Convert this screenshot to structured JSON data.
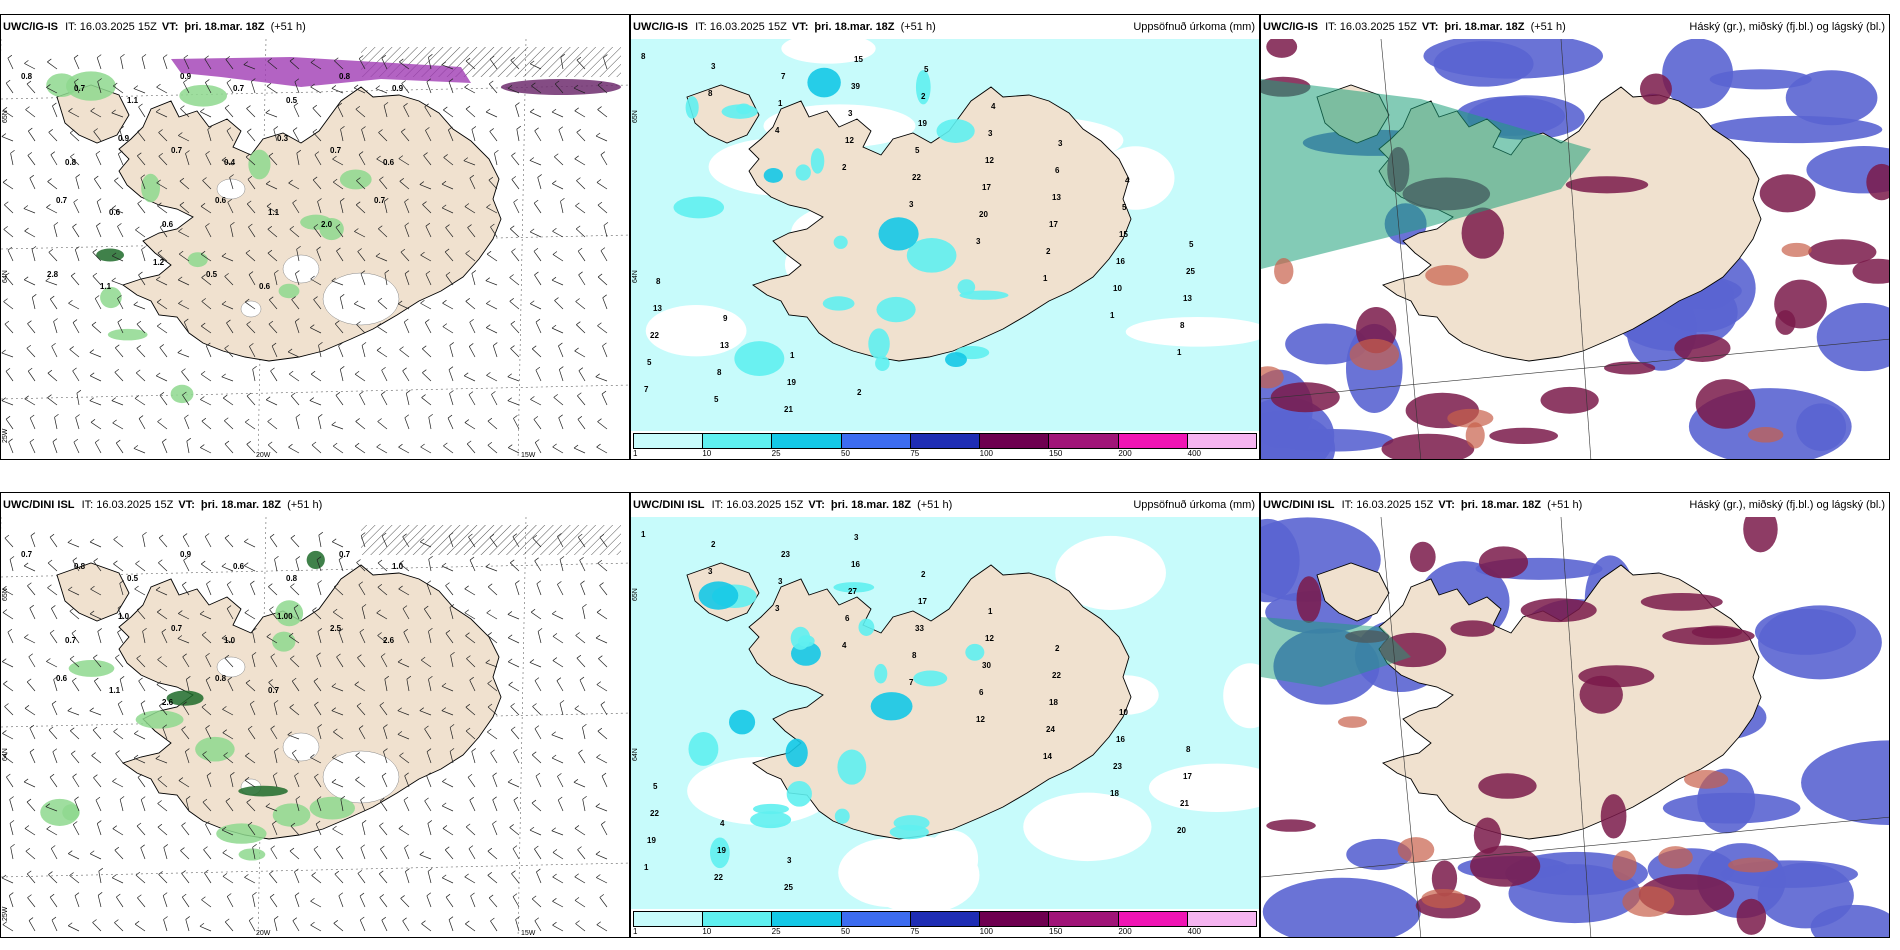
{
  "panels": [
    {
      "id": "p1",
      "title": "UWC/IG-IS",
      "it": "IT: 16.03.2025 15Z",
      "vt_label": "VT:",
      "vt_value": "þri. 18.mar. 18Z",
      "lead": "(+51 h)",
      "right_title": "",
      "type": "wind"
    },
    {
      "id": "p2",
      "title": "UWC/IG-IS",
      "it": "IT: 16.03.2025 15Z",
      "vt_label": "VT:",
      "vt_value": "þri. 18.mar. 18Z",
      "lead": "(+51 h)",
      "right_title": "Uppsöfnuð úrkoma (mm)",
      "type": "precip"
    },
    {
      "id": "p3",
      "title": "UWC/IG-IS",
      "it": "IT: 16.03.2025 15Z",
      "vt_label": "VT:",
      "vt_value": "þri. 18.mar. 18Z",
      "lead": "(+51 h)",
      "right_title": "Háský (gr.), miðský (fj.bl.) og lágský (bl.)",
      "type": "cloud"
    },
    {
      "id": "p4",
      "title": "UWC/DINI ISL",
      "it": "IT: 16.03.2025 15Z",
      "vt_label": "VT:",
      "vt_value": "þri. 18.mar. 18Z",
      "lead": "(+51 h)",
      "right_title": "",
      "type": "wind"
    },
    {
      "id": "p5",
      "title": "UWC/DINI ISL",
      "it": "IT: 16.03.2025 15Z",
      "vt_label": "VT:",
      "vt_value": "þri. 18.mar. 18Z",
      "lead": "(+51 h)",
      "right_title": "Uppsöfnuð úrkoma (mm)",
      "type": "precip"
    },
    {
      "id": "p6",
      "title": "UWC/DINI ISL",
      "it": "IT: 16.03.2025 15Z",
      "vt_label": "VT:",
      "vt_value": "þri. 18.mar. 18Z",
      "lead": "(+51 h)",
      "right_title": "Háský (gr.), miðský (fj.bl.) og lágský (bl.)",
      "type": "cloud"
    }
  ],
  "legend": {
    "ticks": [
      "1",
      "10",
      "25",
      "50",
      "75",
      "100",
      "150",
      "200",
      "400"
    ],
    "colors": [
      "#c7fbfb",
      "#5ff0f0",
      "#14c8e6",
      "#3c6cf0",
      "#1e2db4",
      "#6e0050",
      "#a01478",
      "#f014b4",
      "#f5b4f0"
    ]
  },
  "gridlabels": {
    "wind_top": [
      "65N",
      "64N",
      "25W",
      "20W",
      "15W"
    ],
    "precip_top": [
      "65N",
      "64N"
    ]
  },
  "precip_values_top": [
    "8",
    "8",
    "4",
    "2",
    "3",
    "3",
    "1",
    "1",
    "1",
    "7",
    "3",
    "1",
    "12",
    "22",
    "20",
    "2",
    "10",
    "8",
    "5",
    "5",
    "7",
    "3",
    "5",
    "17",
    "17",
    "16",
    "13",
    "22",
    "8",
    "21",
    "39",
    "19",
    "12",
    "13",
    "15",
    "25",
    "13",
    "13",
    "19",
    "15",
    "2",
    "3",
    "6",
    "5",
    "5",
    "8",
    "9",
    "1",
    "2",
    "5",
    "4",
    "3",
    "4"
  ],
  "precip_values_bottom": [
    "1",
    "3",
    "3",
    "4",
    "7",
    "12",
    "14",
    "18",
    "20",
    "1",
    "2",
    "3",
    "6",
    "8",
    "6",
    "24",
    "23",
    "21",
    "19",
    "22",
    "23",
    "27",
    "33",
    "30",
    "18",
    "16",
    "17",
    "22",
    "19",
    "25",
    "16",
    "17",
    "12",
    "22",
    "10",
    "8",
    "5",
    "4",
    "3",
    "3",
    "2",
    "1",
    "2"
  ],
  "wind_values_top": [
    "0.8",
    "0.7",
    "1.1",
    "0.9",
    "0.7",
    "0.5",
    "0.8",
    "0.9",
    "0.8",
    "0.9",
    "0.7",
    "0.4",
    "0.3",
    "0.7",
    "0.6",
    "0.7",
    "0.6",
    "0.6",
    "0.6",
    "1.1",
    "2.0",
    "0.7",
    "2.8",
    "1.1",
    "1.2",
    "0.5",
    "0.6"
  ],
  "wind_values_bottom": [
    "0.7",
    "0.8",
    "0.5",
    "0.9",
    "0.6",
    "0.8",
    "0.7",
    "1.0",
    "0.7",
    "1.0",
    "0.7",
    "1.0",
    "1.00",
    "2.5",
    "2.6",
    "0.6",
    "1.1",
    "2.6",
    "0.8",
    "0.7"
  ]
}
